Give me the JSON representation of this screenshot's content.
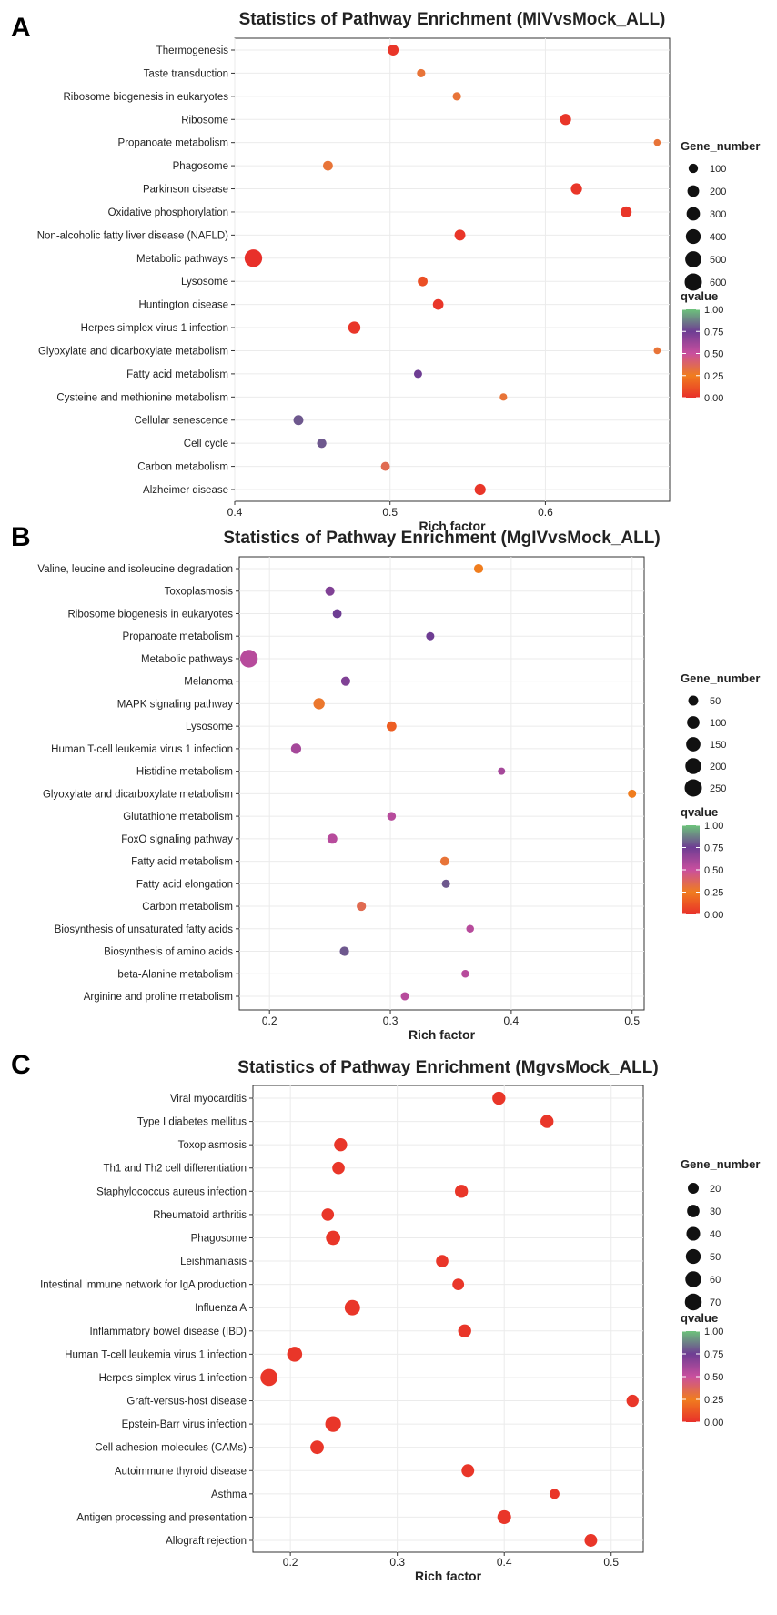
{
  "colors": {
    "q_low": "#e8302a",
    "q_mid_low": "#f07d1e",
    "q_mid": "#c94f9e",
    "q_high": "#6e3d93",
    "q_top": "#6cc37a"
  },
  "chart_data": [
    {
      "type": "scatter",
      "panel": "A",
      "title": "Statistics of Pathway Enrichment (MIVvsMock_ALL)",
      "xlabel": "Rich factor",
      "xlim": [
        0.4,
        0.68
      ],
      "xticks": [
        "0.4",
        "0.5",
        "0.6"
      ],
      "xtick_values": [
        0.4,
        0.5,
        0.6
      ],
      "size_legend_title": "Gene_number",
      "size_legend": [
        "100",
        "200",
        "300",
        "400",
        "500",
        "600"
      ],
      "size_legend_values": [
        100,
        200,
        300,
        400,
        500,
        600
      ],
      "size_max": 600,
      "color_legend_title": "qvalue",
      "color_ticks": [
        "1.00",
        "0.75",
        "0.50",
        "0.25",
        "0.00"
      ],
      "categories": [
        "Thermogenesis",
        "Taste transduction",
        "Ribosome biogenesis in eukaryotes",
        "Ribosome",
        "Propanoate metabolism",
        "Phagosome",
        "Parkinson disease",
        "Oxidative phosphorylation",
        "Non-alcoholic fatty liver disease (NAFLD)",
        "Metabolic pathways",
        "Lysosome",
        "Huntington disease",
        "Herpes simplex virus 1 infection",
        "Glyoxylate and dicarboxylate metabolism",
        "Fatty acid metabolism",
        "Cysteine and methionine metabolism",
        "Cellular senescence",
        "Cell cycle",
        "Carbon metabolism",
        "Alzheimer disease"
      ],
      "x": [
        0.502,
        0.52,
        0.543,
        0.613,
        0.672,
        0.46,
        0.62,
        0.652,
        0.545,
        0.412,
        0.521,
        0.531,
        0.477,
        0.672,
        0.518,
        0.573,
        0.441,
        0.456,
        0.497,
        0.558
      ],
      "gene_number": [
        160,
        65,
        65,
        170,
        30,
        115,
        175,
        165,
        160,
        630,
        115,
        150,
        230,
        30,
        60,
        40,
        120,
        100,
        85,
        170
      ],
      "qvalue": [
        0.02,
        0.3,
        0.3,
        0.02,
        0.3,
        0.3,
        0.02,
        0.02,
        0.02,
        0.0,
        0.1,
        0.02,
        0.02,
        0.3,
        0.75,
        0.3,
        0.8,
        0.8,
        0.35,
        0.02
      ]
    },
    {
      "type": "scatter",
      "panel": "B",
      "title": "Statistics of Pathway Enrichment (MgIVvsMock_ALL)",
      "xlabel": "Rich factor",
      "xlim": [
        0.175,
        0.51
      ],
      "xticks": [
        "0.2",
        "0.3",
        "0.4",
        "0.5"
      ],
      "xtick_values": [
        0.2,
        0.3,
        0.4,
        0.5
      ],
      "size_legend_title": "Gene_number",
      "size_legend": [
        "50",
        "100",
        "150",
        "200",
        "250"
      ],
      "size_legend_values": [
        50,
        100,
        150,
        200,
        250
      ],
      "size_max": 250,
      "color_legend_title": "qvalue",
      "color_ticks": [
        "1.00",
        "0.75",
        "0.50",
        "0.25",
        "0.00"
      ],
      "categories": [
        "Valine, leucine and isoleucine degradation",
        "Toxoplasmosis",
        "Ribosome biogenesis in eukaryotes",
        "Propanoate metabolism",
        "Metabolic pathways",
        "Melanoma",
        "MAPK signaling pathway",
        "Lysosome",
        "Human T-cell leukemia virus 1 infection",
        "Histidine metabolism",
        "Glyoxylate and dicarboxylate metabolism",
        "Glutathione metabolism",
        "FoxO signaling pathway",
        "Fatty acid metabolism",
        "Fatty acid elongation",
        "Carbon metabolism",
        "Biosynthesis of unsaturated fatty acids",
        "Biosynthesis of amino acids",
        "beta-Alanine metabolism",
        "Arginine and proline metabolism"
      ],
      "x": [
        0.373,
        0.25,
        0.256,
        0.333,
        0.183,
        0.263,
        0.241,
        0.301,
        0.222,
        0.392,
        0.5,
        0.301,
        0.252,
        0.345,
        0.346,
        0.276,
        0.366,
        0.262,
        0.362,
        0.312
      ],
      "gene_number": [
        38,
        38,
        35,
        25,
        260,
        38,
        75,
        48,
        55,
        15,
        25,
        30,
        50,
        35,
        25,
        40,
        20,
        40,
        20,
        25
      ],
      "qvalue": [
        0.25,
        0.7,
        0.75,
        0.75,
        0.55,
        0.7,
        0.28,
        0.15,
        0.6,
        0.6,
        0.25,
        0.55,
        0.55,
        0.3,
        0.8,
        0.35,
        0.55,
        0.8,
        0.55,
        0.55
      ]
    },
    {
      "type": "scatter",
      "panel": "C",
      "title": "Statistics of Pathway Enrichment (MgvsMock_ALL)",
      "xlabel": "Rich factor",
      "xlim": [
        0.165,
        0.53
      ],
      "xticks": [
        "0.2",
        "0.3",
        "0.4",
        "0.5"
      ],
      "xtick_values": [
        0.2,
        0.3,
        0.4,
        0.5
      ],
      "size_legend_title": "Gene_number",
      "size_legend": [
        "20",
        "30",
        "40",
        "50",
        "60",
        "70"
      ],
      "size_legend_values": [
        20,
        30,
        40,
        50,
        60,
        70
      ],
      "size_max": 75,
      "color_legend_title": "qvalue",
      "color_ticks": [
        "1.00",
        "0.75",
        "0.50",
        "0.25",
        "0.00"
      ],
      "categories": [
        "Viral myocarditis",
        "Type I diabetes mellitus",
        "Toxoplasmosis",
        "Th1 and Th2 cell differentiation",
        "Staphylococcus aureus infection",
        "Rheumatoid arthritis",
        "Phagosome",
        "Leishmaniasis",
        "Intestinal immune network for IgA production",
        "Influenza A",
        "Inflammatory bowel disease (IBD)",
        "Human T-cell leukemia virus 1 infection",
        "Herpes simplex virus 1 infection",
        "Graft-versus-host disease",
        "Epstein-Barr virus infection",
        "Cell adhesion molecules (CAMs)",
        "Autoimmune thyroid disease",
        "Asthma",
        "Antigen processing and presentation",
        "Allograft rejection"
      ],
      "x": [
        0.395,
        0.44,
        0.247,
        0.245,
        0.36,
        0.235,
        0.24,
        0.342,
        0.357,
        0.258,
        0.363,
        0.204,
        0.18,
        0.52,
        0.24,
        0.225,
        0.366,
        0.447,
        0.4,
        0.481
      ],
      "gene_number": [
        35,
        35,
        35,
        30,
        35,
        30,
        45,
        30,
        25,
        55,
        35,
        52,
        72,
        28,
        58,
        38,
        32,
        15,
        40,
        32
      ],
      "qvalue": [
        0.02,
        0.02,
        0.02,
        0.02,
        0.02,
        0.02,
        0.02,
        0.02,
        0.02,
        0.02,
        0.02,
        0.02,
        0.02,
        0.02,
        0.02,
        0.02,
        0.02,
        0.02,
        0.02,
        0.02
      ]
    }
  ]
}
